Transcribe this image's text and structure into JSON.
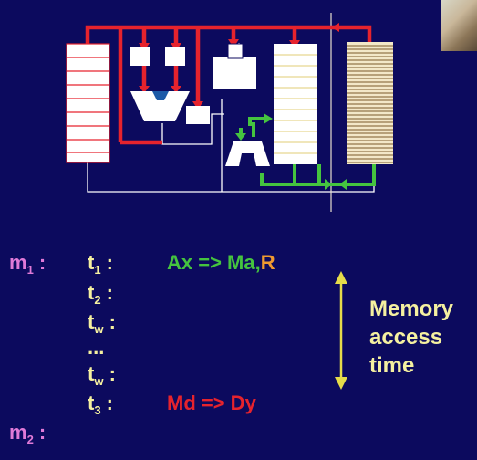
{
  "colors": {
    "background": "#0c0a5e",
    "register": "#ffffff",
    "red_path": "#e6232d",
    "green_path": "#45c43f",
    "white_path": "#ffffff",
    "alu_blue": "#1c5aa8",
    "memory_stripe": "#7a5a2a",
    "memory_bg": "#f2e8c8",
    "cache_line": "#e8d890",
    "cursor": "#e8e0d0",
    "arrow_yellow": "#e6dc4a"
  },
  "timing": {
    "m1": {
      "base": "m",
      "sub": "1",
      "suffix": " :"
    },
    "m2": {
      "base": "m",
      "sub": "2",
      "suffix": " :"
    },
    "t1": {
      "base": "t",
      "sub": "1",
      "suffix": " :"
    },
    "t2": {
      "base": "t",
      "sub": "2",
      "suffix": " :"
    },
    "tw1": {
      "base": "t",
      "sub": "w",
      "suffix": " :"
    },
    "dots": "...",
    "tw2": {
      "base": "t",
      "sub": "w",
      "suffix": " :"
    },
    "t3": {
      "base": "t",
      "sub": "3",
      "suffix": " :"
    },
    "op1": {
      "main": "Ax => Ma,",
      "extra": "R"
    },
    "op2": "Md => Dy"
  },
  "memory_access": {
    "text": "Memory\naccess\ntime"
  }
}
